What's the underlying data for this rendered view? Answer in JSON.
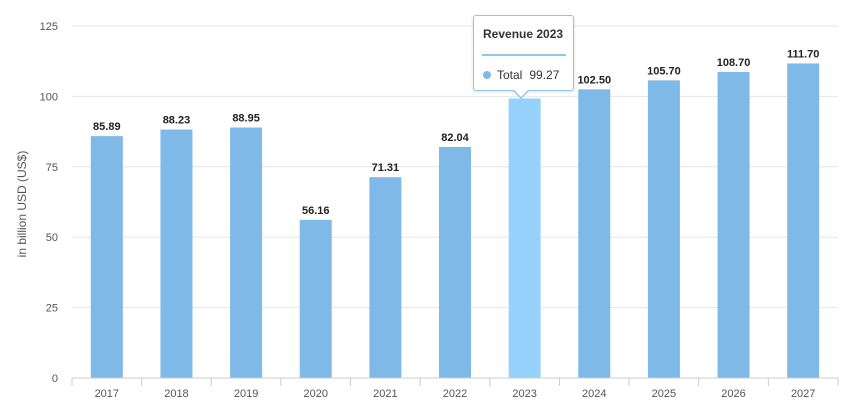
{
  "chart_data": {
    "type": "bar",
    "title": "",
    "xlabel": "",
    "ylabel": "in billion USD (US$)",
    "categories": [
      "2017",
      "2018",
      "2019",
      "2020",
      "2021",
      "2022",
      "2023",
      "2024",
      "2025",
      "2026",
      "2027"
    ],
    "values": [
      85.89,
      88.23,
      88.95,
      56.16,
      71.31,
      82.04,
      99.27,
      102.5,
      105.7,
      108.7,
      111.7
    ],
    "value_labels": [
      "85.89",
      "88.23",
      "88.95",
      "56.16",
      "71.31",
      "82.04",
      "",
      "102.50",
      "105.70",
      "108.70",
      "111.70"
    ],
    "ylim": [
      0,
      125
    ],
    "yticks": [
      0,
      25,
      50,
      75,
      100,
      125
    ],
    "grid": true,
    "legend": "none",
    "highlight_index": 6,
    "colors": {
      "bar": "#7fb9e8",
      "highlight": "#96d2fb",
      "grid": "#e6e6e6",
      "axis": "#cccccc"
    }
  },
  "tooltip": {
    "title": "Revenue 2023",
    "series_name": "Total",
    "value": "99.27",
    "dot_color": "#7fb9e8"
  }
}
